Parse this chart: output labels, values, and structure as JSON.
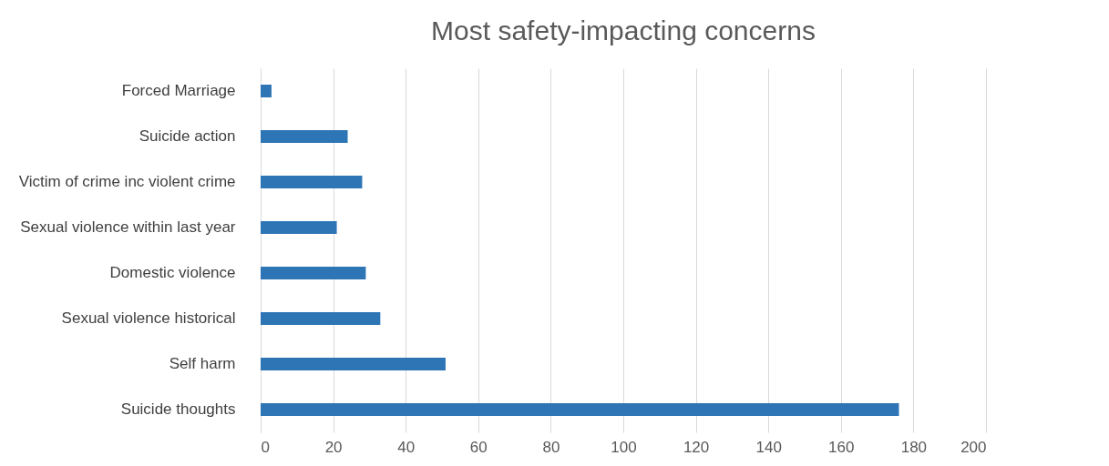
{
  "chart_data": {
    "type": "bar",
    "orientation": "horizontal",
    "title": "Most safety-impacting concerns",
    "categories": [
      "Forced Marriage",
      "Suicide action",
      "Victim of crime inc violent crime",
      "Sexual violence within last year",
      "Domestic violence",
      "Sexual violence historical",
      "Self harm",
      "Suicide thoughts"
    ],
    "values": [
      3,
      24,
      28,
      21,
      29,
      33,
      51,
      176
    ],
    "color": "#2e75b6",
    "xlim": [
      0,
      200
    ],
    "xticks": [
      0,
      20,
      40,
      60,
      80,
      100,
      120,
      140,
      160,
      180,
      200
    ],
    "grid": "x"
  }
}
